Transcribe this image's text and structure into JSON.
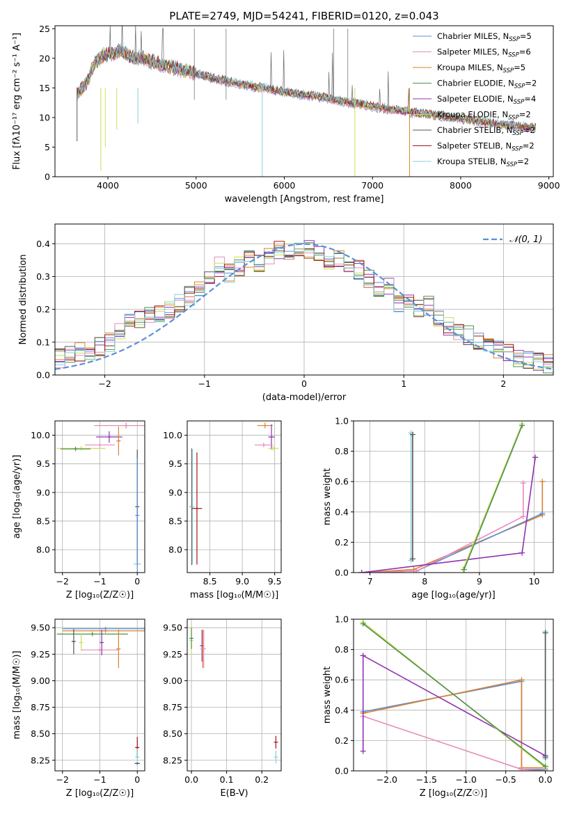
{
  "figure_title": "PLATE=2749, MJD=54241, FIBERID=0120, z=0.043",
  "colors": {
    "Chabrier MILES": "#5b8fd6",
    "Salpeter MILES": "#e88ab9",
    "Kroupa MILES": "#d9822b",
    "Chabrier ELODIE": "#4f8f4f",
    "Salpeter ELODIE": "#9030b0",
    "Kroupa ELODIE": "#c8e05a",
    "Chabrier STELIB": "#555555",
    "Salpeter STELIB": "#a01515",
    "Kroupa STELIB": "#88d0d8"
  },
  "chart_data": [
    {
      "id": "spectrum",
      "type": "line",
      "title": "PLATE=2749, MJD=54241, FIBERID=0120, z=0.043",
      "xlabel": "wavelength [Angstrom, rest frame]",
      "ylabel": "Flux [fλ10⁻¹⁷ erg cm⁻² s⁻¹ A⁻¹]",
      "xlim": [
        3400,
        9050
      ],
      "ylim": [
        0,
        25.5
      ],
      "xticks": [
        4000,
        5000,
        6000,
        7000,
        8000,
        9000
      ],
      "yticks": [
        0,
        5,
        10,
        15,
        20,
        25
      ],
      "grid": false,
      "legend_position": "top-right",
      "legend": [
        {
          "base": "Chabrier MILES, N",
          "sub": "SSP",
          "tail": "=5"
        },
        {
          "base": "Salpeter MILES, N",
          "sub": "SSP",
          "tail": "=6"
        },
        {
          "base": "Kroupa MILES, N",
          "sub": "SSP",
          "tail": "=5"
        },
        {
          "base": "Chabrier ELODIE, N",
          "sub": "SSP",
          "tail": "=2"
        },
        {
          "base": "Salpeter ELODIE, N",
          "sub": "SSP",
          "tail": "=4"
        },
        {
          "base": "Kroupa ELODIE, N",
          "sub": "SSP",
          "tail": "=2"
        },
        {
          "base": "Chabrier STELIB, N",
          "sub": "SSP",
          "tail": "=2"
        },
        {
          "base": "Salpeter STELIB, N",
          "sub": "SSP",
          "tail": "=2"
        },
        {
          "base": "Kroupa STELIB, N",
          "sub": "SSP",
          "tail": "=2"
        }
      ],
      "continuum": {
        "x": [
          3650,
          3750,
          3850,
          3950,
          4050,
          4150,
          4250,
          4400,
          4600,
          4800,
          5000,
          5200,
          5400,
          5600,
          5800,
          6000,
          6200,
          6400,
          6600,
          6800,
          7000,
          7200,
          7400,
          7600,
          7800,
          8000,
          8200,
          8400,
          8600,
          8800
        ],
        "y": [
          14.0,
          15.5,
          19.2,
          20.5,
          20.8,
          21.2,
          20.3,
          20.0,
          19.0,
          18.2,
          17.4,
          16.6,
          16.0,
          15.4,
          14.9,
          14.3,
          13.9,
          13.5,
          12.9,
          12.4,
          11.9,
          11.4,
          11.0,
          10.6,
          10.2,
          9.8,
          9.4,
          9.0,
          8.6,
          8.3
        ]
      },
      "noise_amplitude": 1.4
    },
    {
      "id": "residuals",
      "type": "histogram",
      "xlabel": "(data-model)/error",
      "ylabel": "Normed distribution",
      "xlim": [
        -2.5,
        2.5
      ],
      "ylim": [
        0,
        0.46
      ],
      "xticks": [
        -2,
        -1,
        0,
        1,
        2
      ],
      "yticks": [
        0.0,
        0.1,
        0.2,
        0.3,
        0.4
      ],
      "grid": true,
      "legend_position": "top-right",
      "legend": "𝒩(0, 1)",
      "bins": 50,
      "reference_curve": {
        "type": "normal",
        "mean": 0,
        "sd": 1
      },
      "series_template": [
        0.05,
        0.06,
        0.07,
        0.075,
        0.085,
        0.1,
        0.13,
        0.16,
        0.17,
        0.18,
        0.19,
        0.2,
        0.22,
        0.24,
        0.26,
        0.29,
        0.33,
        0.31,
        0.33,
        0.35,
        0.34,
        0.36,
        0.38,
        0.37,
        0.39,
        0.38,
        0.37,
        0.35,
        0.36,
        0.34,
        0.32,
        0.29,
        0.26,
        0.27,
        0.22,
        0.23,
        0.2,
        0.21,
        0.17,
        0.15,
        0.13,
        0.12,
        0.1,
        0.09,
        0.08,
        0.07,
        0.05,
        0.05,
        0.04,
        0.035
      ],
      "spread": 0.03
    },
    {
      "id": "z-vs-age",
      "type": "scatter",
      "xlabel": "Z [log₁₀(Z/Z☉)]",
      "ylabel": "age  [log₁₀(age/yr)]",
      "xlim": [
        -2.2,
        0.2
      ],
      "ylim": [
        7.6,
        10.25
      ],
      "xticks": [
        -2,
        -1,
        0
      ],
      "yticks": [
        8.0,
        8.5,
        9.0,
        9.5,
        10.0
      ],
      "grid": true,
      "points": [
        {
          "model": "Kroupa MILES",
          "x": -0.3,
          "y": 10.17,
          "xerr": 0.85,
          "yerr": 0.05
        },
        {
          "model": "Salpeter MILES",
          "x": -0.3,
          "y": 10.17,
          "xerr": 0.85,
          "yerr": 0.05
        },
        {
          "model": "Salpeter ELODIE",
          "x": -0.75,
          "y": 9.97,
          "xerr": 0.35,
          "yerr": 0.1
        },
        {
          "model": "Salpeter MILES",
          "x": -1.0,
          "y": 9.83,
          "xerr": 0.4,
          "yerr": 0.04
        },
        {
          "model": "Kroupa ELODIE",
          "x": -1.5,
          "y": 9.77,
          "xerr": 0.65,
          "yerr": 0.04
        },
        {
          "model": "Chabrier ELODIE",
          "x": -1.65,
          "y": 9.76,
          "xerr": 0.4,
          "yerr": 0.04
        },
        {
          "model": "Kroupa MILES",
          "x": -0.5,
          "y": 9.9,
          "xerr": 0.05,
          "yerr": 0.25
        },
        {
          "model": "Chabrier STELIB",
          "x": 0.0,
          "y": 8.75,
          "xerr": 0.04,
          "yerr": 1.0
        },
        {
          "model": "Kroupa STELIB",
          "x": 0.0,
          "y": 7.75,
          "xerr": 0.1,
          "yerr": 0.02
        },
        {
          "model": "Chabrier MILES",
          "x": 0.0,
          "y": 8.6,
          "xerr": 0.03,
          "yerr": 1.0
        }
      ]
    },
    {
      "id": "mass-vs-age",
      "type": "scatter",
      "xlabel": "mass [log₁₀(M/M☉)]",
      "ylabel": "",
      "xlim": [
        8.15,
        9.6
      ],
      "ylim": [
        7.6,
        10.25
      ],
      "xticks": [
        8.5,
        9.0,
        9.5
      ],
      "yticks": [
        8.0,
        8.5,
        9.0,
        9.5,
        10.0
      ],
      "grid": true,
      "points": [
        {
          "model": "Kroupa MILES",
          "x": 9.35,
          "y": 10.17,
          "xerr": 0.12,
          "yerr": 0.05
        },
        {
          "model": "Salpeter ELODIE",
          "x": 9.45,
          "y": 9.97,
          "xerr": 0.05,
          "yerr": 0.22
        },
        {
          "model": "Salpeter MILES",
          "x": 9.33,
          "y": 9.83,
          "xerr": 0.14,
          "yerr": 0.04
        },
        {
          "model": "Kroupa ELODIE",
          "x": 9.48,
          "y": 9.77,
          "xerr": 0.08,
          "yerr": 0.04
        },
        {
          "model": "Chabrier STELIB",
          "x": 8.22,
          "y": 8.75,
          "xerr": 0.02,
          "yerr": 1.02
        },
        {
          "model": "Kroupa STELIB",
          "x": 8.23,
          "y": 8.75,
          "xerr": 0.02,
          "yerr": 1.0
        },
        {
          "model": "Salpeter STELIB",
          "x": 8.3,
          "y": 8.72,
          "xerr": 0.08,
          "yerr": 0.98
        }
      ]
    },
    {
      "id": "age-vs-weight",
      "type": "line",
      "xlabel": "age  [log₁₀(age/yr)]",
      "ylabel": "mass weight",
      "xlim": [
        6.7,
        10.35
      ],
      "ylim": [
        0,
        1.0
      ],
      "xticks": [
        7,
        8,
        9,
        10
      ],
      "yticks": [
        0.0,
        0.2,
        0.4,
        0.6,
        0.8,
        1.0
      ],
      "grid": true,
      "series": [
        {
          "model": "Kroupa MILES",
          "x": [
            6.85,
            7.8,
            10.15,
            10.15
          ],
          "y": [
            0.0,
            0.02,
            0.38,
            0.6
          ]
        },
        {
          "model": "Chabrier MILES",
          "x": [
            6.85,
            7.85,
            10.15
          ],
          "y": [
            0.0,
            0.01,
            0.39
          ]
        },
        {
          "model": "Salpeter MILES",
          "x": [
            6.85,
            7.85,
            9.8,
            9.8
          ],
          "y": [
            0.0,
            0.01,
            0.37,
            0.59
          ]
        },
        {
          "model": "Salpeter ELODIE",
          "x": [
            6.85,
            9.78,
            10.02
          ],
          "y": [
            0.0,
            0.13,
            0.76
          ]
        },
        {
          "model": "Kroupa ELODIE",
          "x": [
            8.7,
            9.78
          ],
          "y": [
            0.02,
            0.98
          ]
        },
        {
          "model": "Chabrier ELODIE",
          "x": [
            8.72,
            9.78
          ],
          "y": [
            0.02,
            0.97
          ]
        },
        {
          "model": "Kroupa STELIB",
          "x": [
            7.75,
            7.75
          ],
          "y": [
            0.08,
            0.92
          ]
        },
        {
          "model": "Chabrier STELIB",
          "x": [
            7.78,
            7.78
          ],
          "y": [
            0.09,
            0.91
          ]
        }
      ]
    },
    {
      "id": "z-vs-mass",
      "type": "scatter",
      "xlabel": "Z [log₁₀(Z/Z☉)]",
      "ylabel": "mass [log₁₀(M/M☉)]",
      "xlim": [
        -2.2,
        0.2
      ],
      "ylim": [
        8.15,
        9.58
      ],
      "xticks": [
        -2,
        -1,
        0
      ],
      "yticks": [
        8.25,
        8.5,
        8.75,
        9.0,
        9.25,
        9.5
      ],
      "grid": true,
      "points": [
        {
          "model": "Chabrier MILES",
          "x": -0.85,
          "y": 9.49,
          "xerr": 1.15,
          "yerr": 0.02
        },
        {
          "model": "Kroupa MILES",
          "x": -0.85,
          "y": 9.47,
          "xerr": 1.15,
          "yerr": 0.02
        },
        {
          "model": "Chabrier ELODIE",
          "x": -1.2,
          "y": 9.44,
          "xerr": 0.95,
          "yerr": 0.02
        },
        {
          "model": "Chabrier STELIB",
          "x": -1.7,
          "y": 9.37,
          "xerr": 0.03,
          "yerr": 0.12
        },
        {
          "model": "Kroupa ELODIE",
          "x": -1.5,
          "y": 9.36,
          "xerr": 0.03,
          "yerr": 0.08
        },
        {
          "model": "Salpeter MILES",
          "x": -1.0,
          "y": 9.29,
          "xerr": 0.5,
          "yerr": 0.02
        },
        {
          "model": "Salpeter ELODIE",
          "x": -0.95,
          "y": 9.36,
          "xerr": 0.03,
          "yerr": 0.12
        },
        {
          "model": "Kroupa MILES",
          "x": -0.5,
          "y": 9.3,
          "xerr": 0.03,
          "yerr": 0.18
        },
        {
          "model": "Salpeter STELIB",
          "x": 0.0,
          "y": 8.37,
          "xerr": 0.05,
          "yerr": 0.1
        },
        {
          "model": "Kroupa STELIB",
          "x": 0.0,
          "y": 8.28,
          "xerr": 0.03,
          "yerr": 0.08
        },
        {
          "model": "Chabrier STELIB",
          "x": 0.0,
          "y": 8.22,
          "xerr": 0.07,
          "yerr": 0.01
        }
      ]
    },
    {
      "id": "ebv-vs-mass",
      "type": "scatter",
      "xlabel": "E(B-V)",
      "ylabel": "",
      "xlim": [
        -0.012,
        0.255
      ],
      "ylim": [
        8.15,
        9.58
      ],
      "xticks": [
        0.0,
        0.1,
        0.2
      ],
      "yticks": [
        8.25,
        8.5,
        8.75,
        9.0,
        9.25,
        9.5
      ],
      "grid": true,
      "points": [
        {
          "model": "Kroupa ELODIE",
          "x": 0.0,
          "y": 9.38,
          "xerr": 0.002,
          "yerr": 0.14
        },
        {
          "model": "Chabrier ELODIE",
          "x": 0.0,
          "y": 9.4,
          "xerr": 0.002,
          "yerr": 0.1
        },
        {
          "model": "Salpeter ELODIE",
          "x": 0.03,
          "y": 9.33,
          "xerr": 0.002,
          "yerr": 0.15
        },
        {
          "model": "Kroupa MILES",
          "x": 0.032,
          "y": 9.3,
          "xerr": 0.002,
          "yerr": 0.18
        },
        {
          "model": "Salpeter MILES",
          "x": 0.035,
          "y": 9.3,
          "xerr": 0.002,
          "yerr": 0.18
        },
        {
          "model": "Salpeter STELIB",
          "x": 0.24,
          "y": 8.42,
          "xerr": 0.002,
          "yerr": 0.06
        },
        {
          "model": "Kroupa STELIB",
          "x": 0.24,
          "y": 8.28,
          "xerr": 0.002,
          "yerr": 0.06
        }
      ]
    },
    {
      "id": "z-vs-weight",
      "type": "line",
      "xlabel": "Z [log₁₀(Z/Z☉)]",
      "ylabel": "mass weight",
      "xlim": [
        -2.42,
        0.1
      ],
      "ylim": [
        0,
        1.0
      ],
      "xticks": [
        -2.0,
        -1.5,
        -1.0,
        -0.5,
        0.0
      ],
      "yticks": [
        0.0,
        0.2,
        0.4,
        0.6,
        0.8,
        1.0
      ],
      "grid": true,
      "series": [
        {
          "model": "Chabrier MILES",
          "x": [
            -2.3,
            -0.3,
            -0.3,
            0.0
          ],
          "y": [
            0.39,
            0.59,
            0.01,
            0.01
          ]
        },
        {
          "model": "Kroupa MILES",
          "x": [
            -2.3,
            -0.3,
            -0.3,
            0.0
          ],
          "y": [
            0.38,
            0.6,
            0.02,
            0.02
          ]
        },
        {
          "model": "Salpeter MILES",
          "x": [
            -2.3,
            -0.3,
            0.0
          ],
          "y": [
            0.36,
            0.01,
            0.0
          ]
        },
        {
          "model": "Salpeter ELODIE",
          "x": [
            -2.3,
            -2.3,
            0.0
          ],
          "y": [
            0.13,
            0.76,
            0.1
          ]
        },
        {
          "model": "Kroupa ELODIE",
          "x": [
            -2.3,
            0.0
          ],
          "y": [
            0.98,
            0.02
          ]
        },
        {
          "model": "Chabrier ELODIE",
          "x": [
            -2.3,
            0.0
          ],
          "y": [
            0.97,
            0.03
          ]
        },
        {
          "model": "Kroupa STELIB",
          "x": [
            0.0,
            0.0
          ],
          "y": [
            0.08,
            0.92
          ]
        },
        {
          "model": "Chabrier STELIB",
          "x": [
            0.0,
            0.0
          ],
          "y": [
            0.09,
            0.91
          ]
        }
      ]
    }
  ]
}
